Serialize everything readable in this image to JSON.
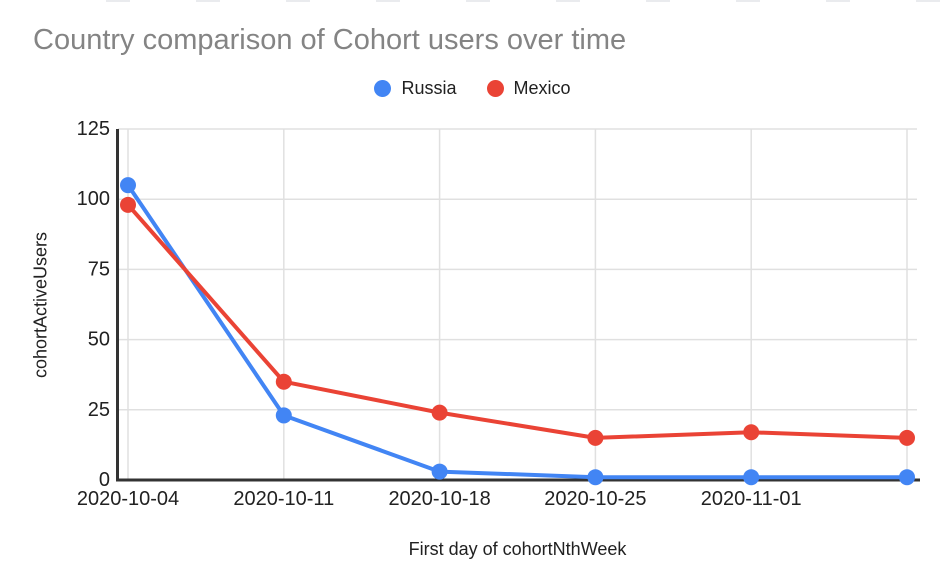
{
  "chart_data": {
    "type": "line",
    "title": "Country comparison of Cohort users over time",
    "xlabel": "First day of cohortNthWeek",
    "ylabel": "cohortActiveUsers",
    "categories": [
      "2020-10-04",
      "2020-10-11",
      "2020-10-18",
      "2020-10-25",
      "2020-11-01",
      ""
    ],
    "series": [
      {
        "name": "Russia",
        "color": "#4285F4",
        "values": [
          105,
          23,
          3,
          1,
          1,
          1
        ]
      },
      {
        "name": "Mexico",
        "color": "#EA4335",
        "values": [
          98,
          35,
          24,
          15,
          17,
          15
        ]
      }
    ],
    "y_ticks": [
      0,
      25,
      50,
      75,
      100,
      125
    ],
    "ylim": [
      0,
      125
    ],
    "grid": true,
    "legend_position": "top",
    "colors": {
      "title_text": "#848484",
      "tick_text": "#212121",
      "axis_line": "#333333",
      "grid_line": "#e0e0e0",
      "background": "#ffffff"
    }
  }
}
